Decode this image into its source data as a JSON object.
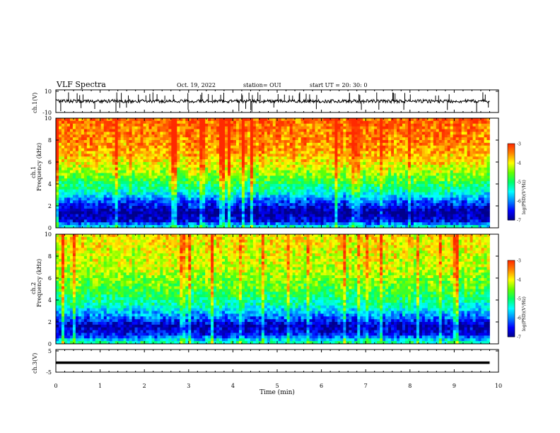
{
  "header": {
    "title": "VLF Spectra",
    "date": "Oct. 19, 2022",
    "station": "station= OUI",
    "start_ut": "start  UT =   20: 30: 0"
  },
  "colors": {
    "spectrum": [
      "#00008b",
      "#0000ff",
      "#0088ff",
      "#00ffff",
      "#00ff66",
      "#66ff00",
      "#ffff00",
      "#ff8800",
      "#ff2a00"
    ],
    "trace": "#000000"
  },
  "chart_data": [
    {
      "type": "line",
      "panel": "waveform-ch1",
      "ylabel": "ch.1(V)",
      "ylim": [
        -10,
        10
      ],
      "yticks": [
        "10",
        "-10"
      ],
      "x_range_min": [
        0,
        9.8
      ],
      "description_series": {
        "baseline_v": 0,
        "spike_max_v": 8,
        "spike_min_v": -10
      }
    },
    {
      "type": "heatmap",
      "panel": "spectrogram-ch1",
      "ylabel": "ch.1\nFrequency (kHz)",
      "ylim": [
        0,
        10
      ],
      "yticks": [
        "0",
        "2",
        "4",
        "6",
        "8",
        "10"
      ],
      "x_range_min": [
        0,
        9.8
      ],
      "colorbar": {
        "label": "log(PSD)(V²/Hz)",
        "ticks": [
          "-3",
          "-4",
          "-5",
          "-6",
          "-7"
        ],
        "range": [
          -7,
          -3
        ]
      },
      "band_profile_khz": [
        {
          "f": 0.0,
          "level": -5.2
        },
        {
          "f": 0.6,
          "level": -6.6
        },
        {
          "f": 1.4,
          "level": -7.0
        },
        {
          "f": 2.4,
          "level": -6.2
        },
        {
          "f": 3.2,
          "level": -5.4
        },
        {
          "f": 4.2,
          "level": -4.8
        },
        {
          "f": 5.5,
          "level": -4.1
        },
        {
          "f": 7.0,
          "level": -3.6
        },
        {
          "f": 10.0,
          "level": -3.3
        }
      ]
    },
    {
      "type": "heatmap",
      "panel": "spectrogram-ch2",
      "ylabel": "ch.2\nFrequency (kHz)",
      "ylim": [
        0,
        10
      ],
      "yticks": [
        "0",
        "2",
        "4",
        "6",
        "8",
        "10"
      ],
      "x_range_min": [
        0,
        9.8
      ],
      "colorbar": {
        "label": "log(PSD)(V²/Hz)",
        "ticks": [
          "-3",
          "-4",
          "-5",
          "-6",
          "-7"
        ],
        "range": [
          -7,
          -3
        ]
      },
      "band_profile_khz": [
        {
          "f": 0.0,
          "level": -5.0
        },
        {
          "f": 0.8,
          "level": -6.4
        },
        {
          "f": 1.6,
          "level": -6.9
        },
        {
          "f": 2.5,
          "level": -6.0
        },
        {
          "f": 3.5,
          "level": -5.3
        },
        {
          "f": 5.0,
          "level": -4.7
        },
        {
          "f": 7.0,
          "level": -4.2
        },
        {
          "f": 10.0,
          "level": -3.9
        }
      ]
    },
    {
      "type": "line",
      "panel": "waveform-ch3",
      "ylabel": "ch.3(V)",
      "ylim": [
        -5,
        5
      ],
      "yticks": [
        "5",
        "-5"
      ],
      "x_range_min": [
        0,
        9.8
      ],
      "description_series": {
        "baseline_v": -0.8,
        "spike_max_v": -0.6,
        "spike_min_v": -1.0
      }
    }
  ],
  "x_axis": {
    "xlabel": "Time (min)",
    "xlim": [
      0,
      10
    ],
    "ticks": [
      "0",
      "1",
      "2",
      "3",
      "4",
      "5",
      "6",
      "7",
      "8",
      "9",
      "10"
    ]
  }
}
